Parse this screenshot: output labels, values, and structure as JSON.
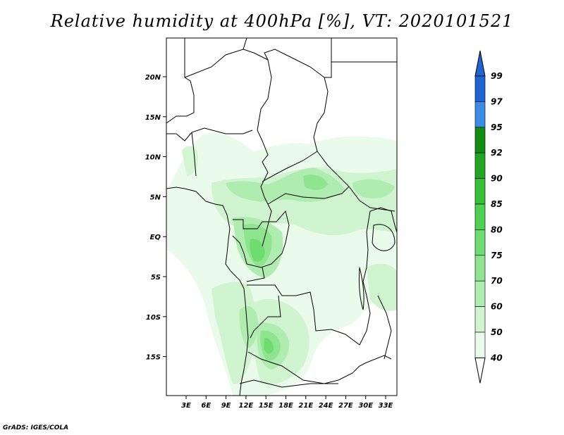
{
  "title": "Relative humidity at 400hPa [%], VT: 2020101521",
  "credit": "GrADS: IGES/COLA",
  "lat_labels": [
    "20N",
    "15N",
    "10N",
    "5N",
    "EQ",
    "5S",
    "10S",
    "15S"
  ],
  "lon_labels": [
    "3E",
    "6E",
    "9E",
    "12E",
    "15E",
    "18E",
    "21E",
    "24E",
    "27E",
    "30E",
    "33E"
  ],
  "colorbar": {
    "labels": [
      "99",
      "97",
      "95",
      "92",
      "90",
      "85",
      "80",
      "75",
      "70",
      "60",
      "50",
      "40"
    ],
    "colors": [
      "#1e64d2",
      "#3c8ce6",
      "#118c11",
      "#22a622",
      "#37bf37",
      "#4fd24f",
      "#6fdc6f",
      "#8fe48f",
      "#afecaf",
      "#cff4cf",
      "#ebfbeb"
    ]
  }
}
